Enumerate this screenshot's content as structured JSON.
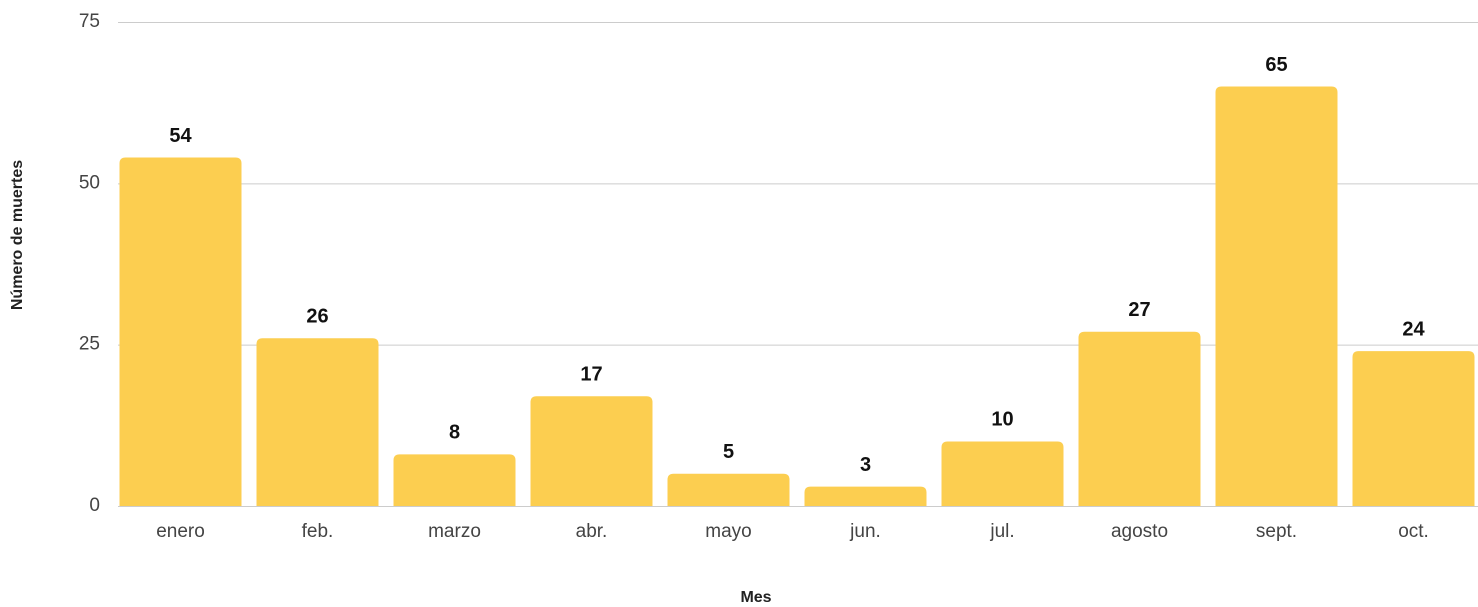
{
  "chart_data": {
    "type": "bar",
    "x_label": "Mes",
    "y_label": "Número de muertes",
    "categories": [
      "enero",
      "feb.",
      "marzo",
      "abr.",
      "mayo",
      "jun.",
      "jul.",
      "agosto",
      "sept.",
      "oct."
    ],
    "values": [
      54,
      26,
      8,
      17,
      5,
      3,
      10,
      27,
      65,
      24
    ],
    "color": "#fcce50",
    "ylim": [
      0,
      75
    ],
    "yticks": [
      0,
      25,
      50,
      75
    ],
    "grid": true
  }
}
